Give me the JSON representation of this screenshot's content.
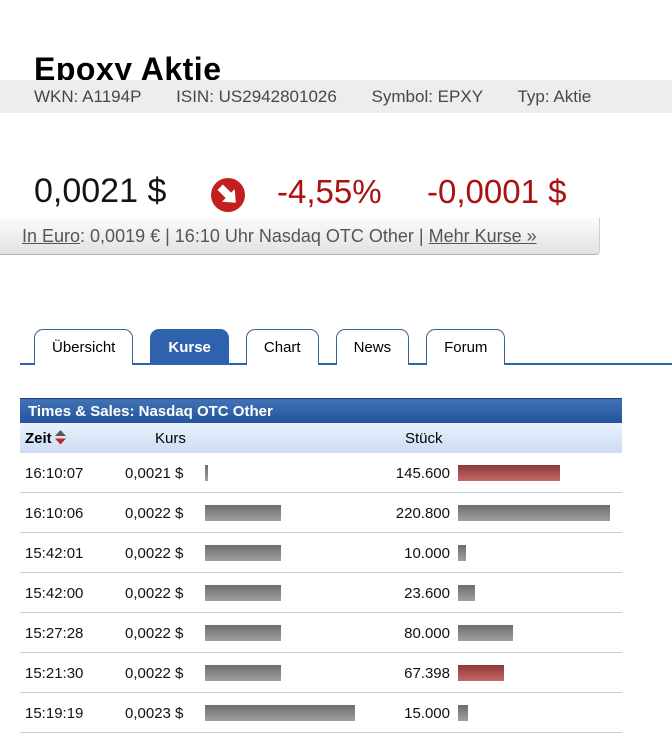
{
  "header": {
    "title": "Epoxy Aktie",
    "meta": {
      "wkn": "WKN: A1194P",
      "isin": "ISIN: US2942801026",
      "symbol": "Symbol: EPXY",
      "typ": "Typ: Aktie"
    }
  },
  "quote": {
    "price": "0,0021 $",
    "trend_icon": "arrow-down-right-circle",
    "change_percent": "-4,55%",
    "change_absolute": "-0,0001 $"
  },
  "info_bar": {
    "in_euro_link": "In Euro",
    "middle_text": ": 0,0019 € | 16:10 Uhr Nasdaq OTC Other | ",
    "more_link": "Mehr Kurse »"
  },
  "tabs": [
    {
      "label": "Übersicht",
      "active": false
    },
    {
      "label": "Kurse",
      "active": true
    },
    {
      "label": "Chart",
      "active": false
    },
    {
      "label": "News",
      "active": false
    },
    {
      "label": "Forum",
      "active": false
    }
  ],
  "table": {
    "title": "Times & Sales: Nasdaq OTC Other",
    "columns": {
      "time": "Zeit",
      "price": "Kurs",
      "volume": "Stück"
    },
    "sorted_by": "Zeit",
    "rows": [
      {
        "time": "16:10:07",
        "price": "0,0021 $",
        "price_bar": {
          "w": 3,
          "color": "#8c8c8c"
        },
        "volume": "145.600",
        "volume_bar": {
          "w": 102,
          "color": "#b74848"
        }
      },
      {
        "time": "16:10:06",
        "price": "0,0022 $",
        "price_bar": {
          "w": 76,
          "color": "#8c8c8c"
        },
        "volume": "220.800",
        "volume_bar": {
          "w": 152,
          "color": "#8c8c8c"
        }
      },
      {
        "time": "15:42:01",
        "price": "0,0022 $",
        "price_bar": {
          "w": 76,
          "color": "#8c8c8c"
        },
        "volume": "10.000",
        "volume_bar": {
          "w": 8,
          "color": "#8c8c8c"
        }
      },
      {
        "time": "15:42:00",
        "price": "0,0022 $",
        "price_bar": {
          "w": 76,
          "color": "#8c8c8c"
        },
        "volume": "23.600",
        "volume_bar": {
          "w": 17,
          "color": "#8c8c8c"
        }
      },
      {
        "time": "15:27:28",
        "price": "0,0022 $",
        "price_bar": {
          "w": 76,
          "color": "#8c8c8c"
        },
        "volume": "80.000",
        "volume_bar": {
          "w": 55,
          "color": "#8c8c8c"
        }
      },
      {
        "time": "15:21:30",
        "price": "0,0022 $",
        "price_bar": {
          "w": 76,
          "color": "#8c8c8c"
        },
        "volume": "67.398",
        "volume_bar": {
          "w": 46,
          "color": "#b74848"
        }
      },
      {
        "time": "15:19:19",
        "price": "0,0023 $",
        "price_bar": {
          "w": 150,
          "color": "#8c8c8c"
        },
        "volume": "15.000",
        "volume_bar": {
          "w": 10,
          "color": "#8c8c8c"
        }
      }
    ]
  },
  "colors": {
    "negative_text": "#aa1111",
    "accent_blue": "#2e62ad",
    "bar_gray": "#8c8c8c",
    "bar_red": "#b74848",
    "trend_circle_red": "#c41f1f"
  }
}
